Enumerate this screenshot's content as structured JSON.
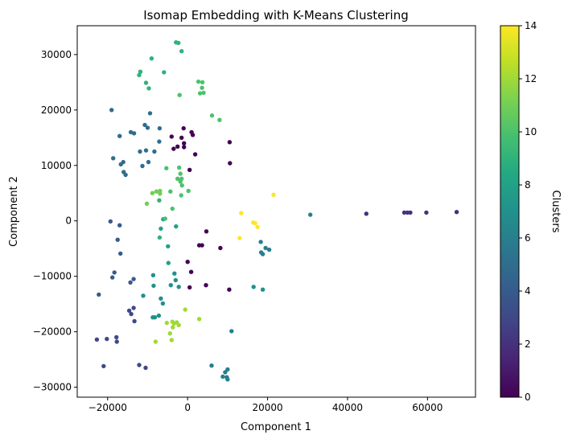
{
  "chart_data": {
    "type": "scatter",
    "title": "Isomap Embedding with K-Means Clustering",
    "xlabel": "Component 1",
    "ylabel": "Component 2",
    "xlim": [
      -27600,
      72000
    ],
    "ylim": [
      -31800,
      35200
    ],
    "xticks": [
      -20000,
      0,
      20000,
      40000,
      60000
    ],
    "yticks": [
      -30000,
      -20000,
      -10000,
      0,
      10000,
      20000,
      30000
    ],
    "xtick_labels": [
      "−20000",
      "0",
      "20000",
      "40000",
      "60000"
    ],
    "ytick_labels": [
      "−30000",
      "−20000",
      "−10000",
      "0",
      "10000",
      "20000",
      "30000"
    ],
    "grid": false,
    "colorbar": {
      "label": "Clusters",
      "range": [
        0,
        14
      ],
      "ticks": [
        0,
        2,
        4,
        6,
        8,
        10,
        12,
        14
      ],
      "tick_labels": [
        "0",
        "2",
        "4",
        "6",
        "8",
        "10",
        "12",
        "14"
      ],
      "colormap": "viridis"
    },
    "points": [
      {
        "x": -1000,
        "y": 16700,
        "c": 0
      },
      {
        "x": -4000,
        "y": 15200,
        "c": 0
      },
      {
        "x": -1500,
        "y": 15000,
        "c": 0
      },
      {
        "x": -900,
        "y": 14000,
        "c": 0
      },
      {
        "x": -2500,
        "y": 13400,
        "c": 0
      },
      {
        "x": -900,
        "y": 13300,
        "c": 0
      },
      {
        "x": -3500,
        "y": 13000,
        "c": 0
      },
      {
        "x": 1000,
        "y": 16000,
        "c": 0
      },
      {
        "x": 1300,
        "y": 15500,
        "c": 0
      },
      {
        "x": 1900,
        "y": 12000,
        "c": 0
      },
      {
        "x": 500,
        "y": 9200,
        "c": 0
      },
      {
        "x": 10500,
        "y": 14200,
        "c": 0
      },
      {
        "x": 10600,
        "y": 10400,
        "c": 0
      },
      {
        "x": 4700,
        "y": -1900,
        "c": 0
      },
      {
        "x": 2900,
        "y": -4400,
        "c": 0
      },
      {
        "x": 3600,
        "y": -4400,
        "c": 0
      },
      {
        "x": 8200,
        "y": -4900,
        "c": 0
      },
      {
        "x": 0,
        "y": -7400,
        "c": 0
      },
      {
        "x": 900,
        "y": -9200,
        "c": 0
      },
      {
        "x": 500,
        "y": -12000,
        "c": 0
      },
      {
        "x": 4600,
        "y": -11600,
        "c": 0
      },
      {
        "x": 10400,
        "y": -12400,
        "c": 0
      },
      {
        "x": 44700,
        "y": 1300,
        "c": 2
      },
      {
        "x": 54200,
        "y": 1500,
        "c": 2
      },
      {
        "x": 55000,
        "y": 1500,
        "c": 2
      },
      {
        "x": 55700,
        "y": 1500,
        "c": 2
      },
      {
        "x": 59700,
        "y": 1500,
        "c": 2
      },
      {
        "x": 67300,
        "y": 1600,
        "c": 2
      },
      {
        "x": -22700,
        "y": -21400,
        "c": 3
      },
      {
        "x": -21000,
        "y": -26200,
        "c": 3
      },
      {
        "x": -20200,
        "y": -21300,
        "c": 3
      },
      {
        "x": -17800,
        "y": -21000,
        "c": 3
      },
      {
        "x": -17700,
        "y": -21800,
        "c": 3
      },
      {
        "x": -12100,
        "y": -26000,
        "c": 3
      },
      {
        "x": -10500,
        "y": -26500,
        "c": 3
      },
      {
        "x": -14600,
        "y": -16200,
        "c": 3
      },
      {
        "x": -14100,
        "y": -16800,
        "c": 3
      },
      {
        "x": -13500,
        "y": -15700,
        "c": 3
      },
      {
        "x": -13300,
        "y": -18100,
        "c": 3
      },
      {
        "x": -22200,
        "y": -13300,
        "c": 4
      },
      {
        "x": -18800,
        "y": -10200,
        "c": 4
      },
      {
        "x": -18300,
        "y": -9300,
        "c": 4
      },
      {
        "x": -17500,
        "y": -3400,
        "c": 4
      },
      {
        "x": -17000,
        "y": -800,
        "c": 4
      },
      {
        "x": -16800,
        "y": -5900,
        "c": 4
      },
      {
        "x": -19300,
        "y": -100,
        "c": 4
      },
      {
        "x": -14300,
        "y": -11100,
        "c": 4
      },
      {
        "x": -13500,
        "y": -10500,
        "c": 4
      },
      {
        "x": -19000,
        "y": 20000,
        "c": 5
      },
      {
        "x": -18600,
        "y": 11300,
        "c": 5
      },
      {
        "x": -17000,
        "y": 15300,
        "c": 5
      },
      {
        "x": -16700,
        "y": 10200,
        "c": 5
      },
      {
        "x": -16100,
        "y": 10600,
        "c": 5
      },
      {
        "x": -16000,
        "y": 8800,
        "c": 5
      },
      {
        "x": -15500,
        "y": 8300,
        "c": 5
      },
      {
        "x": -14200,
        "y": 16000,
        "c": 5
      },
      {
        "x": -13400,
        "y": 15800,
        "c": 5
      },
      {
        "x": -11900,
        "y": 12500,
        "c": 5
      },
      {
        "x": -11300,
        "y": 9900,
        "c": 5
      },
      {
        "x": -10400,
        "y": 12700,
        "c": 5
      },
      {
        "x": -9800,
        "y": 10600,
        "c": 5
      },
      {
        "x": -8300,
        "y": 12500,
        "c": 5
      },
      {
        "x": -10700,
        "y": 17300,
        "c": 5
      },
      {
        "x": -10000,
        "y": 16800,
        "c": 5
      },
      {
        "x": -9400,
        "y": 19400,
        "c": 5
      },
      {
        "x": -7000,
        "y": 16700,
        "c": 5
      },
      {
        "x": -7100,
        "y": 14300,
        "c": 5
      },
      {
        "x": 18300,
        "y": -3800,
        "c": 6
      },
      {
        "x": 18400,
        "y": -5700,
        "c": 6
      },
      {
        "x": 18800,
        "y": -6000,
        "c": 6
      },
      {
        "x": 19500,
        "y": -4900,
        "c": 6
      },
      {
        "x": 20400,
        "y": -5200,
        "c": 6
      },
      {
        "x": 30700,
        "y": 1100,
        "c": 6
      },
      {
        "x": 11000,
        "y": -19900,
        "c": 6
      },
      {
        "x": 6000,
        "y": -26100,
        "c": 6
      },
      {
        "x": 8800,
        "y": -28100,
        "c": 6
      },
      {
        "x": 9400,
        "y": -27300,
        "c": 6
      },
      {
        "x": 10000,
        "y": -26800,
        "c": 6
      },
      {
        "x": 9800,
        "y": -28200,
        "c": 6
      },
      {
        "x": 10000,
        "y": -28600,
        "c": 6
      },
      {
        "x": -3300,
        "y": -9500,
        "c": 7
      },
      {
        "x": -3000,
        "y": -10700,
        "c": 7
      },
      {
        "x": -2200,
        "y": -11900,
        "c": 7
      },
      {
        "x": -4200,
        "y": -11600,
        "c": 7
      },
      {
        "x": -8600,
        "y": -9800,
        "c": 7
      },
      {
        "x": -8500,
        "y": -11700,
        "c": 7
      },
      {
        "x": -6200,
        "y": -14900,
        "c": 7
      },
      {
        "x": -6700,
        "y": -14000,
        "c": 7
      },
      {
        "x": -11100,
        "y": -13500,
        "c": 7
      },
      {
        "x": -7200,
        "y": -17100,
        "c": 7
      },
      {
        "x": -8700,
        "y": -17400,
        "c": 7
      },
      {
        "x": -8200,
        "y": -17400,
        "c": 7
      },
      {
        "x": 16500,
        "y": -11900,
        "c": 7
      },
      {
        "x": 18800,
        "y": -12400,
        "c": 7
      },
      {
        "x": -6700,
        "y": -1400,
        "c": 8
      },
      {
        "x": -6100,
        "y": 300,
        "c": 8
      },
      {
        "x": -4900,
        "y": -4600,
        "c": 8
      },
      {
        "x": -4800,
        "y": -7600,
        "c": 8
      },
      {
        "x": -2900,
        "y": -1000,
        "c": 8
      },
      {
        "x": -2900,
        "y": 32200,
        "c": 9
      },
      {
        "x": -2300,
        "y": 32100,
        "c": 9
      },
      {
        "x": -1500,
        "y": 30600,
        "c": 9
      },
      {
        "x": -9000,
        "y": 29300,
        "c": 9
      },
      {
        "x": -11800,
        "y": 26900,
        "c": 9
      },
      {
        "x": -12100,
        "y": 26300,
        "c": 9
      },
      {
        "x": -5900,
        "y": 26800,
        "c": 9
      },
      {
        "x": -10400,
        "y": 24900,
        "c": 9
      },
      {
        "x": -9700,
        "y": 23900,
        "c": 9
      },
      {
        "x": -7100,
        "y": 3700,
        "c": 9
      },
      {
        "x": -7000,
        "y": -3000,
        "c": 9
      },
      {
        "x": 2700,
        "y": 25100,
        "c": 10
      },
      {
        "x": 3700,
        "y": 25000,
        "c": 10
      },
      {
        "x": 3100,
        "y": 23000,
        "c": 10
      },
      {
        "x": 3600,
        "y": 24000,
        "c": 10
      },
      {
        "x": 4000,
        "y": 23100,
        "c": 10
      },
      {
        "x": -2000,
        "y": 22700,
        "c": 10
      },
      {
        "x": 6100,
        "y": 19000,
        "c": 10
      },
      {
        "x": 8000,
        "y": 18200,
        "c": 10
      },
      {
        "x": -5300,
        "y": 9500,
        "c": 10
      },
      {
        "x": -4300,
        "y": 5300,
        "c": 10
      },
      {
        "x": -3800,
        "y": 2200,
        "c": 10
      },
      {
        "x": -2100,
        "y": 9600,
        "c": 10
      },
      {
        "x": -1800,
        "y": 8500,
        "c": 10
      },
      {
        "x": -1600,
        "y": 4600,
        "c": 10
      },
      {
        "x": -2500,
        "y": 7600,
        "c": 10
      },
      {
        "x": -1800,
        "y": 7100,
        "c": 10
      },
      {
        "x": -1400,
        "y": 6400,
        "c": 10
      },
      {
        "x": 200,
        "y": 5400,
        "c": 10
      },
      {
        "x": -1500,
        "y": 7600,
        "c": 10
      },
      {
        "x": -5600,
        "y": 400,
        "c": 10
      },
      {
        "x": -8800,
        "y": 5000,
        "c": 11
      },
      {
        "x": -7800,
        "y": 5300,
        "c": 11
      },
      {
        "x": -6900,
        "y": 4900,
        "c": 11
      },
      {
        "x": -6900,
        "y": 5400,
        "c": 11
      },
      {
        "x": -10200,
        "y": 3100,
        "c": 11
      },
      {
        "x": -3800,
        "y": -18200,
        "c": 12
      },
      {
        "x": -3700,
        "y": -19200,
        "c": 12
      },
      {
        "x": -4400,
        "y": -20300,
        "c": 12
      },
      {
        "x": -5200,
        "y": -18400,
        "c": 12
      },
      {
        "x": -4000,
        "y": -21500,
        "c": 12
      },
      {
        "x": -8000,
        "y": -21800,
        "c": 12
      },
      {
        "x": -3400,
        "y": -18500,
        "c": 12
      },
      {
        "x": -2700,
        "y": -18300,
        "c": 12
      },
      {
        "x": -2200,
        "y": -18800,
        "c": 12
      },
      {
        "x": -600,
        "y": -16000,
        "c": 12
      },
      {
        "x": 2900,
        "y": -17700,
        "c": 12
      },
      {
        "x": 13400,
        "y": 1400,
        "c": 14
      },
      {
        "x": 13000,
        "y": -3100,
        "c": 14
      },
      {
        "x": 16400,
        "y": -300,
        "c": 14
      },
      {
        "x": 16900,
        "y": -400,
        "c": 14
      },
      {
        "x": 17500,
        "y": -1100,
        "c": 14
      },
      {
        "x": 21500,
        "y": 4700,
        "c": 14
      }
    ]
  }
}
